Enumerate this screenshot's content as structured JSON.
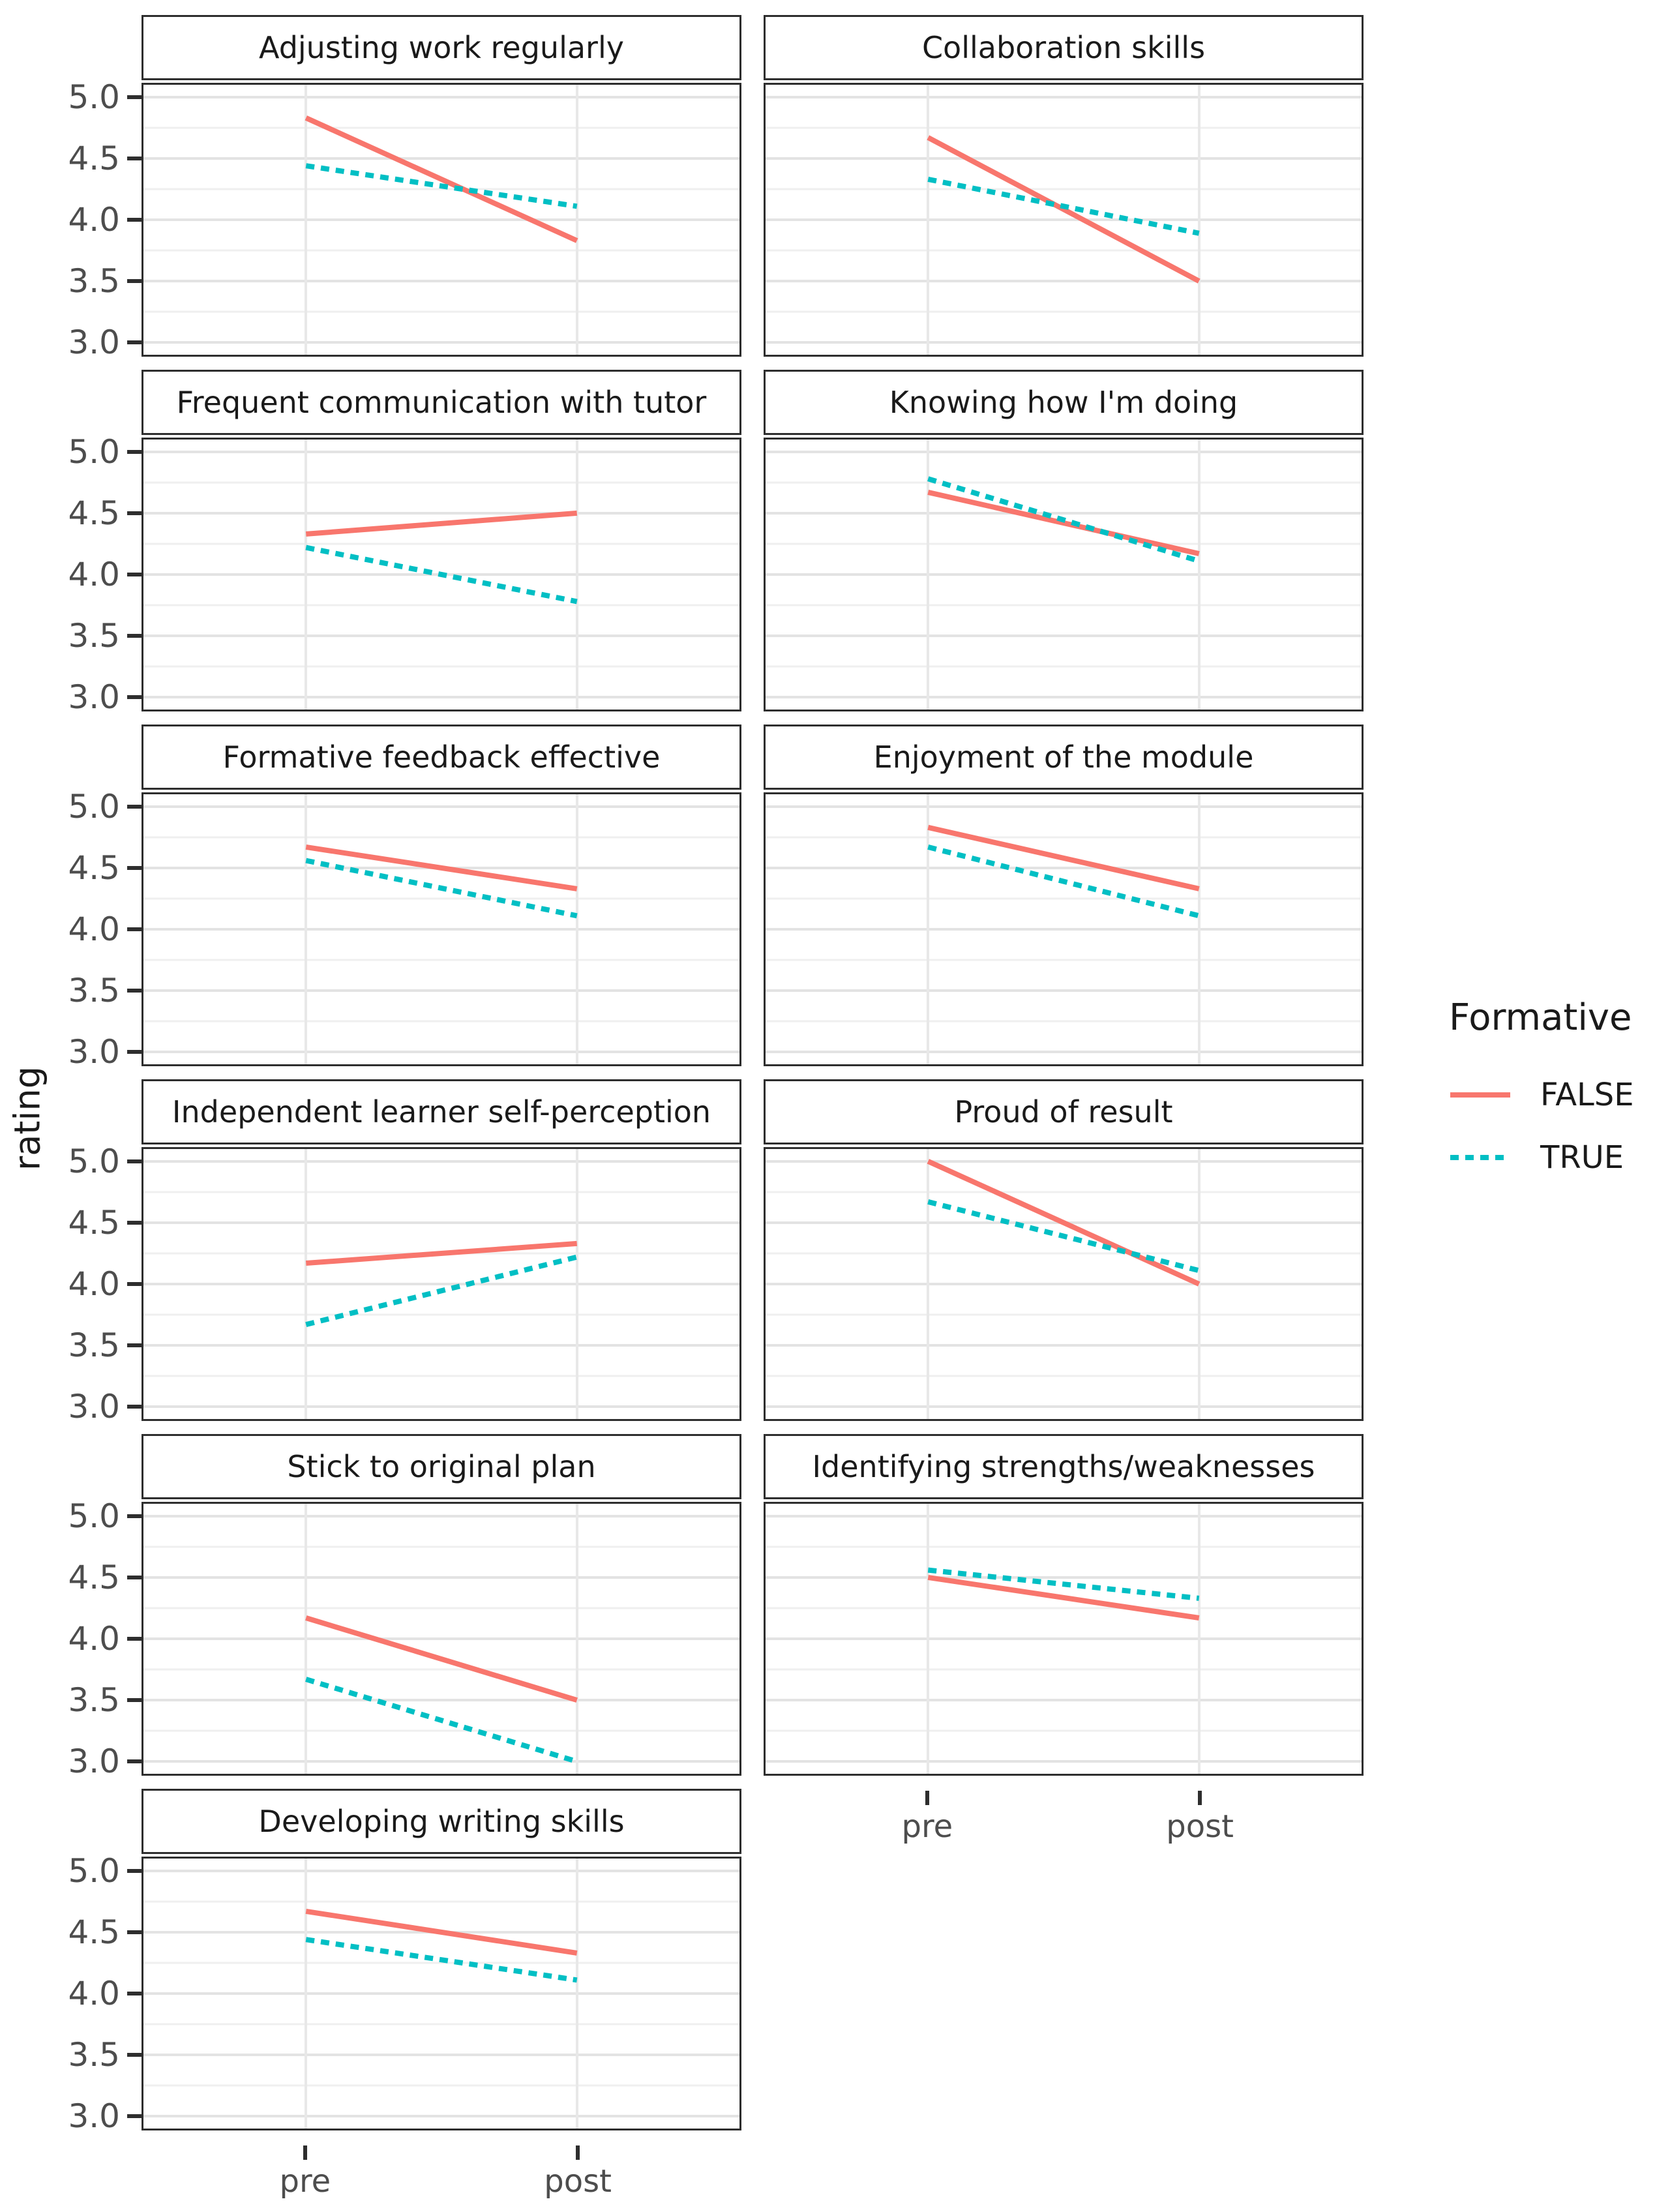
{
  "figure": {
    "y_axis_title": "rating",
    "x_tick_labels": [
      "pre",
      "post"
    ],
    "y_tick_labels": [
      "5.0",
      "4.5",
      "4.0",
      "3.5",
      "3.0"
    ]
  },
  "legend": {
    "title": "Formative",
    "items": [
      {
        "label": "FALSE",
        "color": "#F8766D",
        "style": "solid"
      },
      {
        "label": "TRUE",
        "color": "#00BFC4",
        "style": "dashed"
      }
    ]
  },
  "chart_data": {
    "type": "line",
    "x": [
      "pre",
      "post"
    ],
    "xlabel": "",
    "ylabel": "rating",
    "ylim": [
      2.9,
      5.1
    ],
    "y_breaks": [
      5.0,
      4.5,
      4.0,
      3.5,
      3.0
    ],
    "grid": "on",
    "legend_position": "right",
    "facet_columns": 2,
    "series_names": [
      "FALSE",
      "TRUE"
    ],
    "facets": [
      {
        "title": "Adjusting work regularly",
        "series": [
          {
            "name": "FALSE",
            "values": [
              4.83,
              3.83
            ]
          },
          {
            "name": "TRUE",
            "values": [
              4.44,
              4.11
            ]
          }
        ]
      },
      {
        "title": "Collaboration skills",
        "series": [
          {
            "name": "FALSE",
            "values": [
              4.67,
              3.5
            ]
          },
          {
            "name": "TRUE",
            "values": [
              4.33,
              3.89
            ]
          }
        ]
      },
      {
        "title": "Frequent communication with tutor",
        "series": [
          {
            "name": "FALSE",
            "values": [
              4.33,
              4.5
            ]
          },
          {
            "name": "TRUE",
            "values": [
              4.22,
              3.78
            ]
          }
        ]
      },
      {
        "title": "Knowing how I'm doing",
        "series": [
          {
            "name": "FALSE",
            "values": [
              4.67,
              4.17
            ]
          },
          {
            "name": "TRUE",
            "values": [
              4.78,
              4.11
            ]
          }
        ]
      },
      {
        "title": "Formative feedback effective",
        "series": [
          {
            "name": "FALSE",
            "values": [
              4.67,
              4.33
            ]
          },
          {
            "name": "TRUE",
            "values": [
              4.56,
              4.11
            ]
          }
        ]
      },
      {
        "title": "Enjoyment of the module",
        "series": [
          {
            "name": "FALSE",
            "values": [
              4.83,
              4.33
            ]
          },
          {
            "name": "TRUE",
            "values": [
              4.67,
              4.11
            ]
          }
        ]
      },
      {
        "title": "Independent learner self-perception",
        "series": [
          {
            "name": "FALSE",
            "values": [
              4.17,
              4.33
            ]
          },
          {
            "name": "TRUE",
            "values": [
              3.67,
              4.22
            ]
          }
        ]
      },
      {
        "title": "Proud of result",
        "series": [
          {
            "name": "FALSE",
            "values": [
              5.0,
              4.0
            ]
          },
          {
            "name": "TRUE",
            "values": [
              4.67,
              4.11
            ]
          }
        ]
      },
      {
        "title": "Stick to original plan",
        "series": [
          {
            "name": "FALSE",
            "values": [
              4.17,
              3.5
            ]
          },
          {
            "name": "TRUE",
            "values": [
              3.67,
              3.0
            ]
          }
        ]
      },
      {
        "title": "Identifying strengths/weaknesses",
        "series": [
          {
            "name": "FALSE",
            "values": [
              4.5,
              4.17
            ]
          },
          {
            "name": "TRUE",
            "values": [
              4.56,
              4.33
            ]
          }
        ]
      },
      {
        "title": "Developing writing skills",
        "series": [
          {
            "name": "FALSE",
            "values": [
              4.67,
              4.33
            ]
          },
          {
            "name": "TRUE",
            "values": [
              4.44,
              4.11
            ]
          }
        ]
      }
    ]
  }
}
